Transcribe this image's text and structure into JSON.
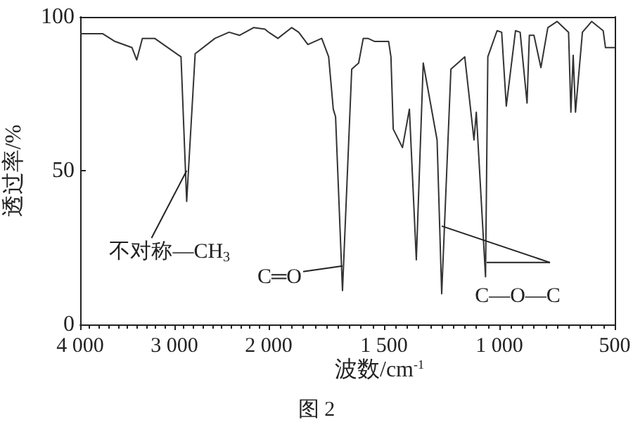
{
  "chart_data": [
    {
      "type": "line",
      "ylabel": "透过率/%",
      "xlim": [
        4000,
        2000
      ],
      "xticks": [
        {
          "value": 4000,
          "label": "4 000"
        },
        {
          "value": 3000,
          "label": "3 000"
        },
        {
          "value": 2000,
          "label": "2 000"
        }
      ],
      "ylim": [
        0,
        100
      ],
      "yticks": [
        0,
        50,
        100
      ],
      "series": [
        {
          "color": "#333333",
          "x": [
            4000,
            3760,
            3630,
            3450,
            3400,
            3340,
            3210,
            2930,
            2870,
            2780,
            2570,
            2420,
            2310,
            2160,
            2040,
            2000
          ],
          "values": [
            94.5,
            94.5,
            92,
            90,
            86,
            93,
            93,
            87,
            40,
            88,
            93,
            95,
            94,
            96.5,
            96,
            95
          ]
        }
      ],
      "annotations": [
        {
          "text": "不对称—CH$_{3}$",
          "x": 2870,
          "y": 50
        }
      ]
    },
    {
      "type": "line",
      "xlabel": "波数/cm$^{-1}$",
      "xlim": [
        2000,
        500
      ],
      "xticks": [
        {
          "value": 1500,
          "label": "1 500"
        },
        {
          "value": 1000,
          "label": "1 000"
        },
        500
      ],
      "ylim": [
        0,
        100
      ],
      "tick_labels": "x",
      "series": [
        {
          "color": "#333333",
          "x": [
            2000,
            1960,
            1900,
            1870,
            1830,
            1770,
            1740,
            1720,
            1710,
            1680,
            1640,
            1610,
            1590,
            1570,
            1540,
            1480,
            1470,
            1460,
            1420,
            1390,
            1360,
            1330,
            1270,
            1250,
            1210,
            1150,
            1110,
            1100,
            1060,
            1050,
            1010,
            990,
            970,
            930,
            910,
            880,
            870,
            850,
            820,
            790,
            750,
            700,
            690,
            680,
            670,
            640,
            600,
            550,
            540,
            510,
            500
          ],
          "values": [
            95,
            93,
            96.5,
            95,
            91,
            93,
            87,
            70,
            67.5,
            11,
            83,
            85,
            93,
            93,
            92,
            92,
            87,
            63.5,
            57.5,
            70,
            21,
            85,
            60,
            10,
            83,
            87,
            60,
            69,
            15.5,
            87,
            95.5,
            95,
            71,
            95.5,
            95,
            72,
            94,
            94,
            83.5,
            96.5,
            98.5,
            95,
            69,
            87.5,
            69,
            95,
            98.5,
            95.5,
            90,
            90,
            90
          ]
        }
      ],
      "annotations": [
        {
          "text": "C═O",
          "x": 1680,
          "y": 19
        },
        {
          "text": "C—O—C",
          "x": 1250,
          "y": 32
        },
        "图 2"
      ]
    }
  ]
}
